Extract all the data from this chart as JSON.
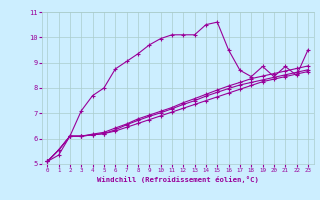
{
  "background_color": "#cceeff",
  "grid_color": "#aacccc",
  "line_color": "#990099",
  "marker_color": "#990099",
  "xlabel": "Windchill (Refroidissement éolien,°C)",
  "xlabel_color": "#990099",
  "tick_color": "#990099",
  "xlim": [
    -0.5,
    23.5
  ],
  "ylim": [
    5,
    11
  ],
  "xticks": [
    0,
    1,
    2,
    3,
    4,
    5,
    6,
    7,
    8,
    9,
    10,
    11,
    12,
    13,
    14,
    15,
    16,
    17,
    18,
    19,
    20,
    21,
    22,
    23
  ],
  "yticks": [
    5,
    6,
    7,
    8,
    9,
    10,
    11
  ],
  "curve1_x": [
    0,
    1,
    2,
    3,
    4,
    5,
    6,
    7,
    8,
    9,
    10,
    11,
    12,
    13,
    14,
    15,
    16,
    17,
    18,
    19,
    20,
    21,
    22,
    23
  ],
  "curve1_y": [
    5.1,
    5.35,
    6.1,
    7.1,
    7.7,
    8.0,
    8.75,
    9.05,
    9.35,
    9.7,
    9.95,
    10.1,
    10.1,
    10.1,
    10.5,
    10.6,
    9.5,
    8.7,
    8.45,
    8.85,
    8.45,
    8.85,
    8.5,
    9.5
  ],
  "curve2_x": [
    0,
    1,
    2,
    3,
    4,
    5,
    6,
    7,
    8,
    9,
    10,
    11,
    12,
    13,
    14,
    15,
    16,
    17,
    18,
    19,
    20,
    21,
    22,
    23
  ],
  "curve2_y": [
    5.1,
    5.55,
    6.1,
    6.1,
    6.15,
    6.2,
    6.3,
    6.45,
    6.6,
    6.75,
    6.9,
    7.05,
    7.2,
    7.35,
    7.5,
    7.65,
    7.8,
    7.95,
    8.1,
    8.25,
    8.35,
    8.45,
    8.55,
    8.65
  ],
  "curve3_x": [
    0,
    1,
    2,
    3,
    4,
    5,
    6,
    7,
    8,
    9,
    10,
    11,
    12,
    13,
    14,
    15,
    16,
    17,
    18,
    19,
    20,
    21,
    22,
    23
  ],
  "curve3_y": [
    5.1,
    5.55,
    6.1,
    6.1,
    6.15,
    6.2,
    6.35,
    6.55,
    6.72,
    6.88,
    7.02,
    7.18,
    7.35,
    7.5,
    7.68,
    7.83,
    7.98,
    8.12,
    8.22,
    8.32,
    8.42,
    8.52,
    8.62,
    8.72
  ],
  "curve4_x": [
    0,
    1,
    2,
    3,
    4,
    5,
    6,
    7,
    8,
    9,
    10,
    11,
    12,
    13,
    14,
    15,
    16,
    17,
    18,
    19,
    20,
    21,
    22,
    23
  ],
  "curve4_y": [
    5.1,
    5.55,
    6.1,
    6.1,
    6.18,
    6.25,
    6.42,
    6.58,
    6.78,
    6.93,
    7.08,
    7.23,
    7.42,
    7.58,
    7.75,
    7.92,
    8.08,
    8.22,
    8.37,
    8.47,
    8.57,
    8.67,
    8.77,
    8.87
  ]
}
